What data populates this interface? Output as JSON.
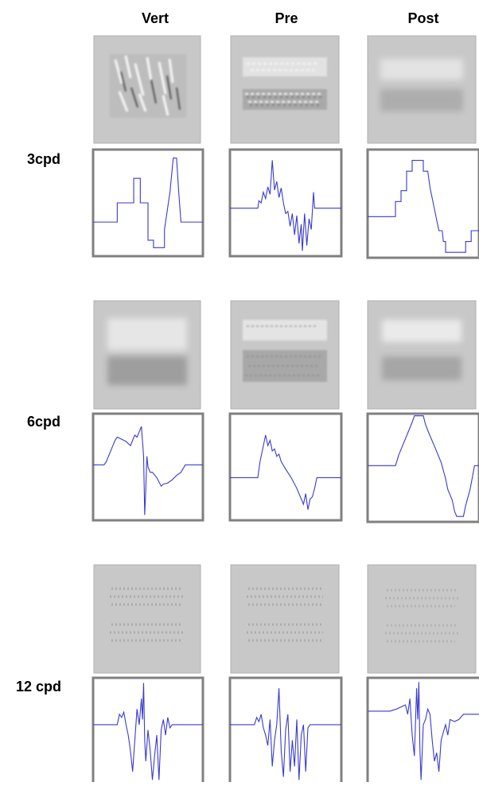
{
  "columns": [
    "Vert",
    "Pre",
    "Post"
  ],
  "rows": [
    "3cpd",
    "6cpd",
    "12 cpd"
  ]
}
